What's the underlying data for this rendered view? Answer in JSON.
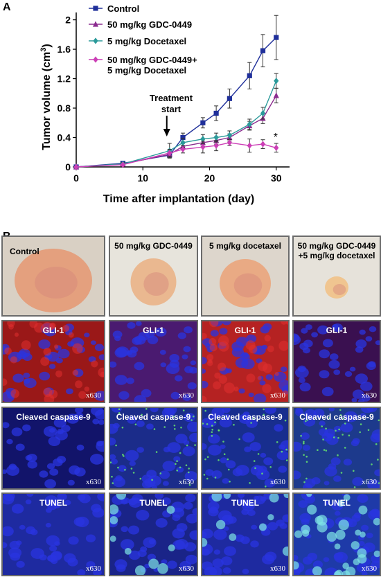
{
  "panel_a_letter": "A",
  "panel_b_letter": "B",
  "chart_data": {
    "type": "line",
    "xlabel": "Time after implantation (day)",
    "ylabel_main": "Tumor volume (cm",
    "ylabel_sup": "3",
    "ylabel_close": ")",
    "xlim": [
      0,
      32
    ],
    "ylim": [
      0,
      2.1
    ],
    "xticks": [
      0,
      10,
      20,
      30
    ],
    "yticks": [
      0,
      0.4,
      0.8,
      1.2,
      1.6,
      2
    ],
    "ytick_labels": [
      "0",
      "0.4",
      "0.8",
      "1.2",
      "1.6",
      "2"
    ],
    "annotation": {
      "line1": "Treatment",
      "line2": "start",
      "x": 14
    },
    "significance_mark": "*",
    "series": [
      {
        "name": "Control",
        "color": "#1f2f9a",
        "marker": "square",
        "x": [
          0,
          7,
          14,
          16,
          19,
          21,
          23,
          26,
          28,
          30
        ],
        "y": [
          0,
          0.05,
          0.16,
          0.4,
          0.6,
          0.73,
          0.93,
          1.24,
          1.58,
          1.76
        ],
        "err": [
          0,
          0.02,
          0.03,
          0.06,
          0.07,
          0.1,
          0.13,
          0.18,
          0.22,
          0.3
        ]
      },
      {
        "name": "50 mg/kg GDC-0449",
        "color": "#8b2c8f",
        "marker": "triangle",
        "x": [
          0,
          7,
          14,
          16,
          19,
          21,
          23,
          26,
          28,
          30
        ],
        "y": [
          0,
          0.04,
          0.17,
          0.28,
          0.33,
          0.36,
          0.4,
          0.56,
          0.66,
          0.97
        ],
        "err": [
          0,
          0.02,
          0.04,
          0.04,
          0.05,
          0.05,
          0.05,
          0.06,
          0.07,
          0.1
        ]
      },
      {
        "name": "5 mg/kg Docetaxel",
        "color": "#2a9a9a",
        "marker": "diamond",
        "x": [
          0,
          7,
          14,
          16,
          19,
          21,
          23,
          26,
          28,
          30
        ],
        "y": [
          0,
          0.04,
          0.22,
          0.33,
          0.38,
          0.4,
          0.43,
          0.58,
          0.73,
          1.17
        ],
        "err": [
          0,
          0.02,
          0.1,
          0.06,
          0.06,
          0.06,
          0.06,
          0.07,
          0.08,
          0.1
        ]
      },
      {
        "name": "50 mg/kg GDC-0449+\n5 mg/kg Docetaxel",
        "color": "#cc3fb6",
        "marker": "diamond",
        "x": [
          0,
          7,
          14,
          16,
          19,
          21,
          23,
          26,
          28,
          30
        ],
        "y": [
          0,
          0.03,
          0.19,
          0.24,
          0.27,
          0.29,
          0.33,
          0.29,
          0.31,
          0.26
        ],
        "err": [
          0,
          0.01,
          0.05,
          0.05,
          0.08,
          0.07,
          0.04,
          0.09,
          0.06,
          0.06
        ]
      }
    ]
  },
  "panel_b": {
    "magnification": "x630",
    "rows": [
      {
        "kind": "photo",
        "labels": [
          "Control",
          "50 mg/kg GDC-0449",
          "5 mg/kg docetaxel",
          "50 mg/kg GDC-0449\n+5 mg/kg docetaxel"
        ]
      },
      {
        "kind": "gli",
        "labels": [
          "GLI-1",
          "GLI-1",
          "GLI-1",
          "GLI-1"
        ]
      },
      {
        "kind": "casp",
        "labels": [
          "Cleaved caspase-9",
          "Cleaved caspase-9",
          "Cleaved caspase-9",
          "Cleaved caspase-9"
        ]
      },
      {
        "kind": "tunel",
        "labels": [
          "TUNEL",
          "TUNEL",
          "TUNEL",
          "TUNEL"
        ]
      }
    ]
  }
}
